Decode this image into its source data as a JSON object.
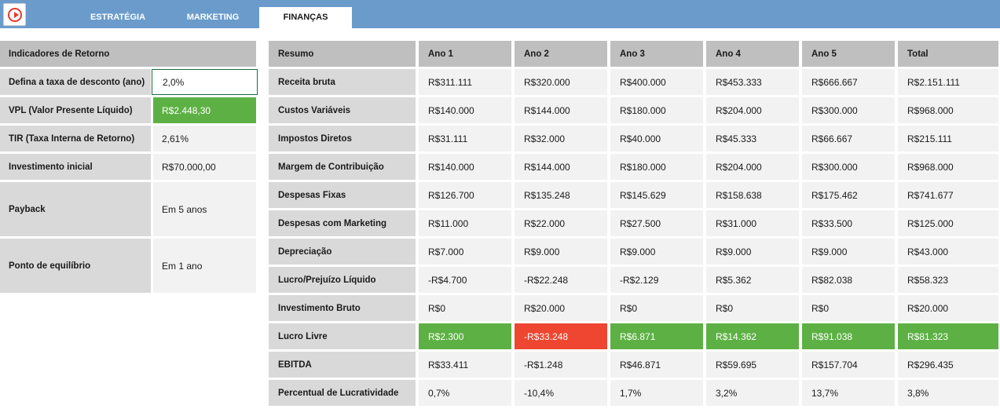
{
  "tabs": [
    {
      "label": "ESTRATÉGIA",
      "active": false
    },
    {
      "label": "MARKETING",
      "active": false
    },
    {
      "label": "FINANÇAS",
      "active": true
    }
  ],
  "colors": {
    "topbar": "#6a9bcb",
    "positive": "#5db144",
    "negative": "#ee4630",
    "header": "#bfbfbf",
    "label": "#d9d9d9",
    "cell": "#f2f2f2"
  },
  "indicators": {
    "title": "Indicadores de Retorno",
    "rows": [
      {
        "label": "Defina a taxa de desconto (ano)",
        "value": "2,0%",
        "kind": "input"
      },
      {
        "label": "VPL (Valor Presente Líquido)",
        "value": "R$2.448,30",
        "kind": "green"
      },
      {
        "label": "TIR (Taxa Interna de Retorno)",
        "value": "2,61%",
        "kind": "plain"
      },
      {
        "label": "Investimento inicial",
        "value": "R$70.000,00",
        "kind": "plain"
      },
      {
        "label": "Payback",
        "value": "Em 5 anos",
        "kind": "plain"
      },
      {
        "label": "Ponto de equilíbrio",
        "value": "Em 1 ano",
        "kind": "plain"
      }
    ]
  },
  "summary": {
    "headers": [
      "Resumo",
      "Ano 1",
      "Ano 2",
      "Ano 3",
      "Ano 4",
      "Ano 5",
      "Total"
    ],
    "rows": [
      {
        "label": "Receita bruta",
        "values": [
          "R$311.111",
          "R$320.000",
          "R$400.000",
          "R$453.333",
          "R$666.667",
          "R$2.151.111"
        ]
      },
      {
        "label": "Custos Variáveis",
        "values": [
          "R$140.000",
          "R$144.000",
          "R$180.000",
          "R$204.000",
          "R$300.000",
          "R$968.000"
        ]
      },
      {
        "label": "Impostos Diretos",
        "values": [
          "R$31.111",
          "R$32.000",
          "R$40.000",
          "R$45.333",
          "R$66.667",
          "R$215.111"
        ]
      },
      {
        "label": "Margem de Contribuição",
        "values": [
          "R$140.000",
          "R$144.000",
          "R$180.000",
          "R$204.000",
          "R$300.000",
          "R$968.000"
        ]
      },
      {
        "label": "Despesas Fixas",
        "values": [
          "R$126.700",
          "R$135.248",
          "R$145.629",
          "R$158.638",
          "R$175.462",
          "R$741.677"
        ]
      },
      {
        "label": "Despesas com Marketing",
        "values": [
          "R$11.000",
          "R$22.000",
          "R$27.500",
          "R$31.000",
          "R$33.500",
          "R$125.000"
        ]
      },
      {
        "label": "Depreciação",
        "values": [
          "R$7.000",
          "R$9.000",
          "R$9.000",
          "R$9.000",
          "R$9.000",
          "R$43.000"
        ]
      },
      {
        "label": "Lucro/Prejuízo Líquido",
        "values": [
          "-R$4.700",
          "-R$22.248",
          "-R$2.129",
          "R$5.362",
          "R$82.038",
          "R$58.323"
        ]
      },
      {
        "label": "Investimento Bruto",
        "values": [
          "R$0",
          "R$20.000",
          "R$0",
          "R$0",
          "R$0",
          "R$20.000"
        ]
      },
      {
        "label": "Lucro Livre",
        "values": [
          "R$2.300",
          "-R$33.248",
          "R$6.871",
          "R$14.362",
          "R$91.038",
          "R$81.323"
        ],
        "highlight": [
          "green",
          "red",
          "green",
          "green",
          "green",
          "green"
        ]
      },
      {
        "label": "EBITDA",
        "values": [
          "R$33.411",
          "-R$1.248",
          "R$46.871",
          "R$59.695",
          "R$157.704",
          "R$296.435"
        ]
      },
      {
        "label": "Percentual de Lucratividade",
        "values": [
          "0,7%",
          "-10,4%",
          "1,7%",
          "3,2%",
          "13,7%",
          "3,8%"
        ]
      }
    ]
  }
}
